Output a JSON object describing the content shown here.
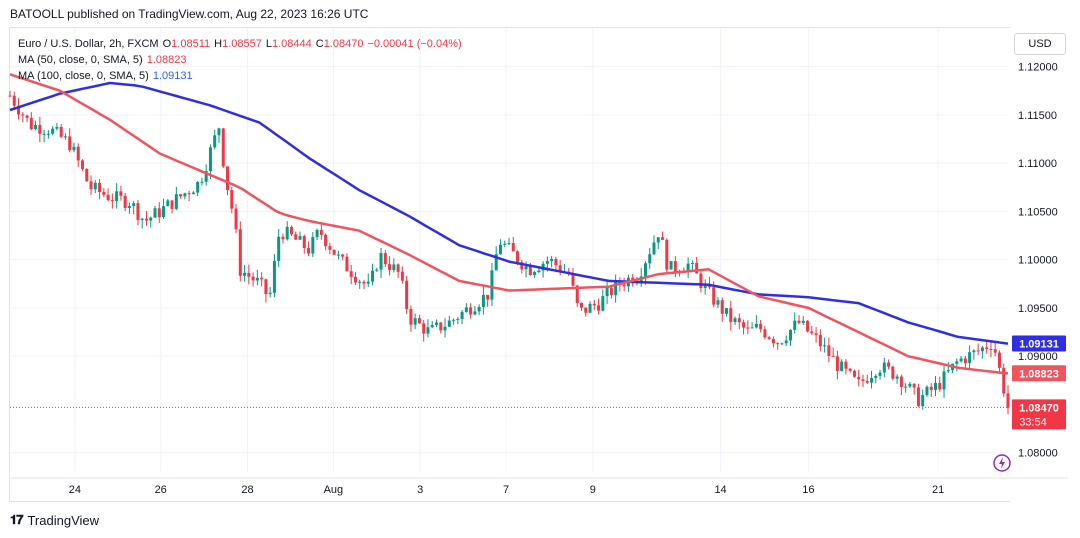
{
  "publisher": "BATOOLL published on TradingView.com, Aug 22, 2023 16:26 UTC",
  "currency_button": "USD",
  "brand": "TradingView",
  "legend": {
    "symbol": "Euro / U.S. Dollar, 2h, FXCM",
    "open_label": "O",
    "open": "1.08511",
    "high_label": "H",
    "high": "1.08557",
    "low_label": "L",
    "low": "1.08444",
    "close_label": "C",
    "close": "1.08470",
    "change": "−0.00041 (−0.04%)",
    "ma50_label": "MA (50, close, 0, SMA, 5)",
    "ma50_value": "1.08823",
    "ma100_label": "MA (100, close, 0, SMA, 5)",
    "ma100_value": "1.09131"
  },
  "badges": {
    "ma100": "1.09131",
    "ma50": "1.08823",
    "price": "1.08470",
    "countdown": "33:54"
  },
  "colors": {
    "up": "#089981",
    "down": "#f23645",
    "ma50": "#f0545e",
    "ma100": "#2e2ee6",
    "grid": "#f0f3fa",
    "price_line": "#f23645"
  },
  "chart_data": {
    "type": "candlestick",
    "ylim": [
      1.078,
      1.124
    ],
    "y_ticks": [
      "1.12000",
      "1.11500",
      "1.11000",
      "1.10500",
      "1.10000",
      "1.09500",
      "1.09000",
      "1.08000"
    ],
    "x_ticks": [
      "24",
      "26",
      "28",
      "Aug",
      "3",
      "7",
      "9",
      "14",
      "16",
      "21"
    ],
    "price": 1.0847,
    "ma50_last": 1.08823,
    "ma100_last": 1.09131,
    "ma100_curve": [
      [
        0,
        1.1155
      ],
      [
        0.05,
        1.1172
      ],
      [
        0.1,
        1.1183
      ],
      [
        0.13,
        1.118
      ],
      [
        0.2,
        1.116
      ],
      [
        0.25,
        1.1142
      ],
      [
        0.3,
        1.1105
      ],
      [
        0.35,
        1.1072
      ],
      [
        0.4,
        1.1045
      ],
      [
        0.45,
        1.1015
      ],
      [
        0.5,
        1.0998
      ],
      [
        0.55,
        1.0988
      ],
      [
        0.6,
        1.0978
      ],
      [
        0.65,
        1.0976
      ],
      [
        0.7,
        1.0974
      ],
      [
        0.75,
        1.0964
      ],
      [
        0.8,
        1.0961
      ],
      [
        0.85,
        1.0955
      ],
      [
        0.9,
        1.0935
      ],
      [
        0.95,
        1.092
      ],
      [
        1.0,
        1.0913
      ]
    ],
    "ma50_curve": [
      [
        0,
        1.1192
      ],
      [
        0.05,
        1.1175
      ],
      [
        0.1,
        1.1145
      ],
      [
        0.15,
        1.111
      ],
      [
        0.2,
        1.1088
      ],
      [
        0.23,
        1.1075
      ],
      [
        0.27,
        1.1048
      ],
      [
        0.3,
        1.104
      ],
      [
        0.35,
        1.103
      ],
      [
        0.4,
        1.1005
      ],
      [
        0.45,
        1.0978
      ],
      [
        0.5,
        1.0968
      ],
      [
        0.55,
        1.097
      ],
      [
        0.6,
        1.0972
      ],
      [
        0.65,
        1.0985
      ],
      [
        0.7,
        1.099
      ],
      [
        0.75,
        1.0962
      ],
      [
        0.8,
        1.095
      ],
      [
        0.85,
        1.0925
      ],
      [
        0.9,
        1.09
      ],
      [
        0.95,
        1.0888
      ],
      [
        1.0,
        1.0882
      ]
    ],
    "price_path": [
      [
        0,
        1.117
      ],
      [
        0.02,
        1.114
      ],
      [
        0.04,
        1.1135
      ],
      [
        0.06,
        1.112
      ],
      [
        0.08,
        1.1075
      ],
      [
        0.1,
        1.1065
      ],
      [
        0.12,
        1.106
      ],
      [
        0.135,
        1.104
      ],
      [
        0.15,
        1.105
      ],
      [
        0.17,
        1.1065
      ],
      [
        0.19,
        1.108
      ],
      [
        0.21,
        1.114
      ],
      [
        0.215,
        1.109
      ],
      [
        0.225,
        1.104
      ],
      [
        0.23,
        1.099
      ],
      [
        0.25,
        1.0975
      ],
      [
        0.26,
        1.096
      ],
      [
        0.27,
        1.103
      ],
      [
        0.28,
        1.1025
      ],
      [
        0.3,
        1.101
      ],
      [
        0.31,
        1.103
      ],
      [
        0.33,
        1.1
      ],
      [
        0.35,
        1.098
      ],
      [
        0.36,
        1.097
      ],
      [
        0.37,
        1.1005
      ],
      [
        0.39,
        1.0985
      ],
      [
        0.4,
        1.094
      ],
      [
        0.42,
        1.0925
      ],
      [
        0.44,
        1.0935
      ],
      [
        0.46,
        1.095
      ],
      [
        0.48,
        1.0965
      ],
      [
        0.49,
        1.102
      ],
      [
        0.5,
        1.101
      ],
      [
        0.52,
        1.099
      ],
      [
        0.54,
        1.1
      ],
      [
        0.56,
        1.0985
      ],
      [
        0.57,
        1.0945
      ],
      [
        0.59,
        1.0955
      ],
      [
        0.61,
        1.0975
      ],
      [
        0.63,
        1.0985
      ],
      [
        0.65,
        1.103
      ],
      [
        0.66,
        1.099
      ],
      [
        0.68,
        1.0995
      ],
      [
        0.7,
        1.0965
      ],
      [
        0.72,
        1.094
      ],
      [
        0.74,
        1.0925
      ],
      [
        0.75,
        1.093
      ],
      [
        0.77,
        1.0915
      ],
      [
        0.79,
        1.0935
      ],
      [
        0.81,
        1.0915
      ],
      [
        0.83,
        1.089
      ],
      [
        0.85,
        1.087
      ],
      [
        0.87,
        1.089
      ],
      [
        0.89,
        1.088
      ],
      [
        0.91,
        1.0855
      ],
      [
        0.93,
        1.087
      ],
      [
        0.95,
        1.0895
      ],
      [
        0.97,
        1.0905
      ],
      [
        0.985,
        1.0915
      ],
      [
        0.995,
        1.087
      ],
      [
        1.0,
        1.0847
      ]
    ]
  }
}
